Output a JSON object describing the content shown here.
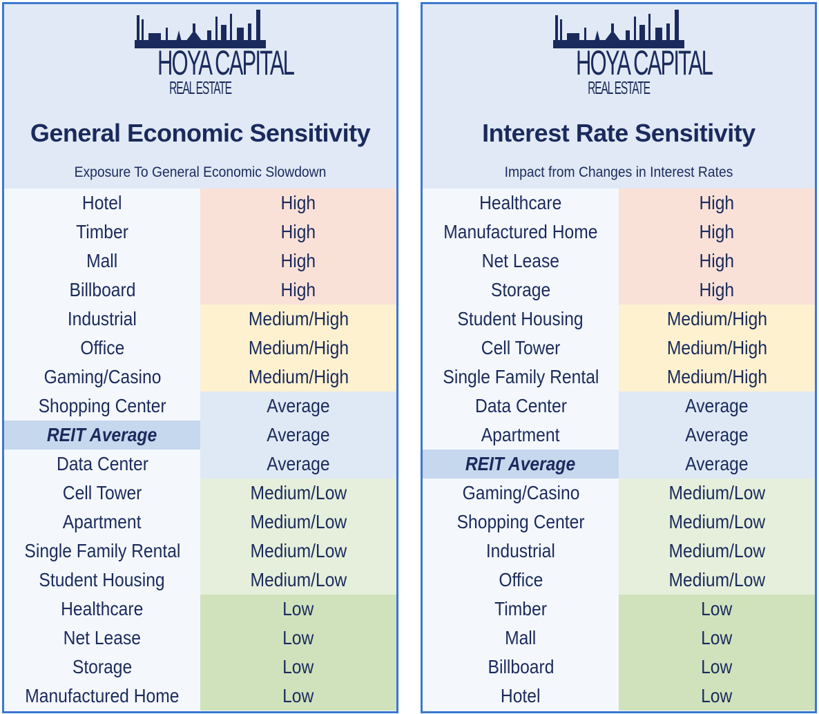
{
  "logo": {
    "main": "HOYA CAPITAL",
    "sub": "REAL ESTATE"
  },
  "colors": {
    "border": "#3a78d0",
    "text": "#1b2a5c",
    "High": "#fae1d7",
    "Medium/High": "#fdf1cf",
    "Average": "#dfe9f5",
    "Medium/Low": "#e5efdb",
    "Low": "#cfe2bc",
    "reit_highlight": "#c6d8ed"
  },
  "panels": [
    {
      "title": "General Economic Sensitivity",
      "subtitle": "Exposure To General Economic Slowdown",
      "rows": [
        {
          "sector": "Hotel",
          "level": "High"
        },
        {
          "sector": "Timber",
          "level": "High"
        },
        {
          "sector": "Mall",
          "level": "High"
        },
        {
          "sector": "Billboard",
          "level": "High"
        },
        {
          "sector": "Industrial",
          "level": "Medium/High"
        },
        {
          "sector": "Office",
          "level": "Medium/High"
        },
        {
          "sector": "Gaming/Casino",
          "level": "Medium/High"
        },
        {
          "sector": "Shopping Center",
          "level": "Average"
        },
        {
          "sector": "REIT Average",
          "level": "Average",
          "highlight": true
        },
        {
          "sector": "Data Center",
          "level": "Average"
        },
        {
          "sector": "Cell Tower",
          "level": "Medium/Low"
        },
        {
          "sector": "Apartment",
          "level": "Medium/Low"
        },
        {
          "sector": "Single Family Rental",
          "level": "Medium/Low"
        },
        {
          "sector": "Student Housing",
          "level": "Medium/Low"
        },
        {
          "sector": "Healthcare",
          "level": "Low"
        },
        {
          "sector": "Net Lease",
          "level": "Low"
        },
        {
          "sector": "Storage",
          "level": "Low"
        },
        {
          "sector": "Manufactured Home",
          "level": "Low"
        }
      ]
    },
    {
      "title": "Interest Rate Sensitivity",
      "subtitle": "Impact from Changes in Interest Rates",
      "rows": [
        {
          "sector": "Healthcare",
          "level": "High"
        },
        {
          "sector": "Manufactured Home",
          "level": "High"
        },
        {
          "sector": "Net Lease",
          "level": "High"
        },
        {
          "sector": "Storage",
          "level": "High"
        },
        {
          "sector": "Student Housing",
          "level": "Medium/High"
        },
        {
          "sector": "Cell Tower",
          "level": "Medium/High"
        },
        {
          "sector": "Single Family Rental",
          "level": "Medium/High"
        },
        {
          "sector": "Data Center",
          "level": "Average"
        },
        {
          "sector": "Apartment",
          "level": "Average"
        },
        {
          "sector": "REIT Average",
          "level": "Average",
          "highlight": true
        },
        {
          "sector": "Gaming/Casino",
          "level": "Medium/Low"
        },
        {
          "sector": "Shopping Center",
          "level": "Medium/Low"
        },
        {
          "sector": "Industrial",
          "level": "Medium/Low"
        },
        {
          "sector": "Office",
          "level": "Medium/Low"
        },
        {
          "sector": "Timber",
          "level": "Low"
        },
        {
          "sector": "Mall",
          "level": "Low"
        },
        {
          "sector": "Billboard",
          "level": "Low"
        },
        {
          "sector": "Hotel",
          "level": "Low"
        }
      ]
    }
  ]
}
